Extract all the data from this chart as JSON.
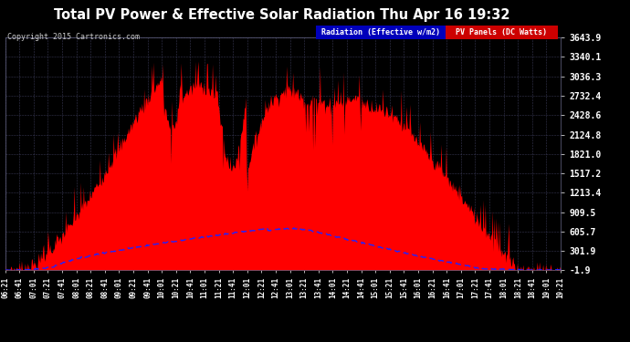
{
  "title": "Total PV Power & Effective Solar Radiation Thu Apr 16 19:32",
  "copyright": "Copyright 2015 Cartronics.com",
  "legend_radiation": "Radiation (Effective w/m2)",
  "legend_pv": "PV Panels (DC Watts)",
  "legend_radiation_bg": "#0000bb",
  "legend_pv_bg": "#cc0000",
  "bg_color": "#000000",
  "plot_bg_color": "#000000",
  "grid_color": "#444466",
  "radiation_line_color": "#2222ff",
  "pv_fill_color": "#ff0000",
  "pv_line_color": "#ff0000",
  "title_color": "#ffffff",
  "tick_color": "#ffffff",
  "ytick_values": [
    3643.9,
    3340.1,
    3036.3,
    2732.4,
    2428.6,
    2124.8,
    1821.0,
    1517.2,
    1213.4,
    909.5,
    605.7,
    301.9,
    -1.9
  ],
  "ymin": -1.9,
  "ymax": 3643.9,
  "xstart_min": 381,
  "xend_min": 1161
}
